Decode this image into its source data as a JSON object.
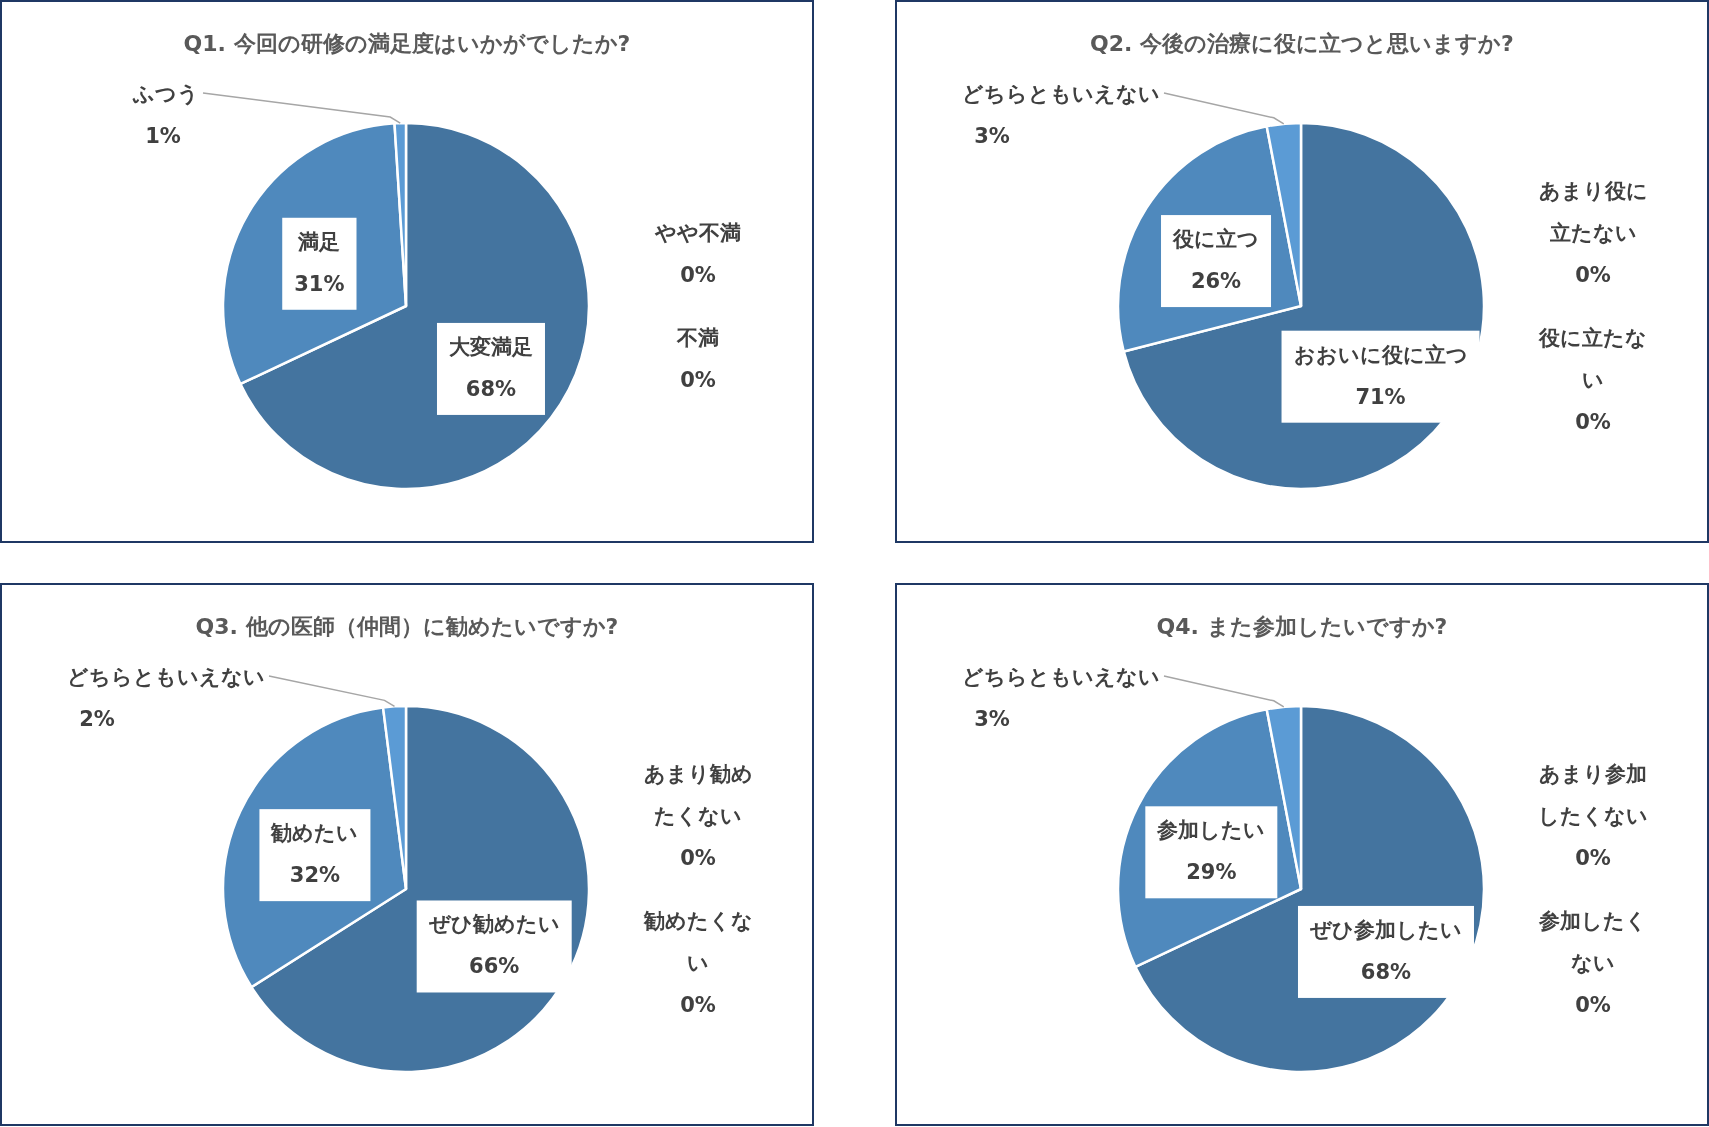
{
  "chart_data": [
    {
      "type": "pie",
      "title": "Q1. 今回の研修の満足度はいかがでしたか?",
      "categories": [
        "大変満足",
        "満足",
        "ふつう",
        "やや不満",
        "不満"
      ],
      "values": [
        68,
        31,
        1,
        0,
        0
      ],
      "value_labels": [
        "68%",
        "31%",
        "1%",
        "0%",
        "0%"
      ],
      "colors": [
        "#44749f",
        "#4f89bd",
        "#5b9bd5",
        "#a5a5a5",
        "#ffc000"
      ]
    },
    {
      "type": "pie",
      "title": "Q2. 今後の治療に役に立つと思いますか?",
      "categories": [
        "おおいに役に立つ",
        "役に立つ",
        "どちらともいえない",
        "あまり役に立たない",
        "役に立たない"
      ],
      "values": [
        71,
        26,
        3,
        0,
        0
      ],
      "value_labels": [
        "71%",
        "26%",
        "3%",
        "0%",
        "0%"
      ],
      "colors": [
        "#44749f",
        "#4f89bd",
        "#5b9bd5",
        "#a5a5a5",
        "#ffc000"
      ]
    },
    {
      "type": "pie",
      "title": "Q3. 他の医師（仲間）に勧めたいですか?",
      "categories": [
        "ぜひ勧めたい",
        "勧めたい",
        "どちらともいえない",
        "あまり勧めたくない",
        "勧めたくない"
      ],
      "values": [
        66,
        32,
        2,
        0,
        0
      ],
      "value_labels": [
        "66%",
        "32%",
        "2%",
        "0%",
        "0%"
      ],
      "colors": [
        "#44749f",
        "#4f89bd",
        "#5b9bd5",
        "#a5a5a5",
        "#ffc000"
      ]
    },
    {
      "type": "pie",
      "title": "Q4. また参加したいですか?",
      "categories": [
        "ぜひ参加したい",
        "参加したい",
        "どちらともいえない",
        "あまり参加したくない",
        "参加したくない"
      ],
      "values": [
        68,
        29,
        3,
        0,
        0
      ],
      "value_labels": [
        "68%",
        "29%",
        "3%",
        "0%",
        "0%"
      ],
      "colors": [
        "#44749f",
        "#4f89bd",
        "#5b9bd5",
        "#a5a5a5",
        "#ffc000"
      ]
    }
  ]
}
